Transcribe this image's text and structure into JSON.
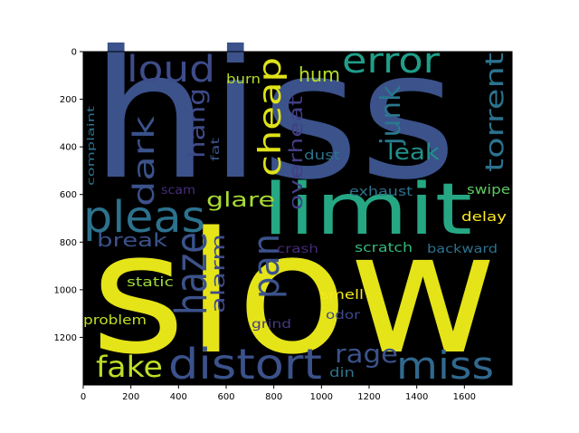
{
  "chart_data": {
    "type": "wordcloud",
    "title": "",
    "xlabel": "",
    "ylabel": "",
    "xlim": [
      0,
      1800
    ],
    "ylim": [
      1400,
      0
    ],
    "x_ticks": [
      0,
      200,
      400,
      600,
      800,
      1000,
      1200,
      1400,
      1600
    ],
    "y_ticks": [
      0,
      200,
      400,
      600,
      800,
      1000,
      1200
    ],
    "background": "#000000",
    "words": [
      {
        "text": "hiss",
        "color": "#3b528b"
      },
      {
        "text": "slow",
        "color": "#e5e419"
      },
      {
        "text": "limit",
        "color": "#26a784"
      },
      {
        "text": "pleas",
        "color": "#2c728e"
      },
      {
        "text": "haze",
        "color": "#3b528b"
      },
      {
        "text": "distort",
        "color": "#3b528b"
      },
      {
        "text": "miss",
        "color": "#31688e"
      },
      {
        "text": "loud",
        "color": "#3e4c8a"
      },
      {
        "text": "error",
        "color": "#1f9e89"
      },
      {
        "text": "cheap",
        "color": "#dfe318"
      },
      {
        "text": "dark",
        "color": "#3b528b"
      },
      {
        "text": "junk",
        "color": "#2a788e"
      },
      {
        "text": "torrent",
        "color": "#2c728e"
      },
      {
        "text": "pan",
        "color": "#3b528b"
      },
      {
        "text": "fake",
        "color": "#bddf26"
      },
      {
        "text": "rage",
        "color": "#3b528b"
      },
      {
        "text": "hang",
        "color": "#3e4a89"
      },
      {
        "text": "hum",
        "color": "#b5de2b"
      },
      {
        "text": "leak",
        "color": "#21918c"
      },
      {
        "text": "overheat",
        "color": "#433e85"
      },
      {
        "text": "glare",
        "color": "#a8db34"
      },
      {
        "text": "break",
        "color": "#3b528b"
      },
      {
        "text": "alarm",
        "color": "#3e4a89"
      },
      {
        "text": "burn",
        "color": "#b5de2b"
      },
      {
        "text": "dust",
        "color": "#2c728e"
      },
      {
        "text": "fat",
        "color": "#3b528b"
      },
      {
        "text": "complaint",
        "color": "#2c728e"
      },
      {
        "text": "scam",
        "color": "#472d7b"
      },
      {
        "text": "exhaust",
        "color": "#2c728e"
      },
      {
        "text": "swipe",
        "color": "#5ec962"
      },
      {
        "text": "delay",
        "color": "#fde725"
      },
      {
        "text": "crash",
        "color": "#472a7a"
      },
      {
        "text": "scratch",
        "color": "#35b779"
      },
      {
        "text": "backward",
        "color": "#2c728e"
      },
      {
        "text": "static",
        "color": "#a0da39"
      },
      {
        "text": "smell",
        "color": "#f4e61e"
      },
      {
        "text": "problem",
        "color": "#c2df23"
      },
      {
        "text": "grind",
        "color": "#443983"
      },
      {
        "text": "odor",
        "color": "#3e4989"
      },
      {
        "text": "din",
        "color": "#2c728e"
      }
    ]
  }
}
